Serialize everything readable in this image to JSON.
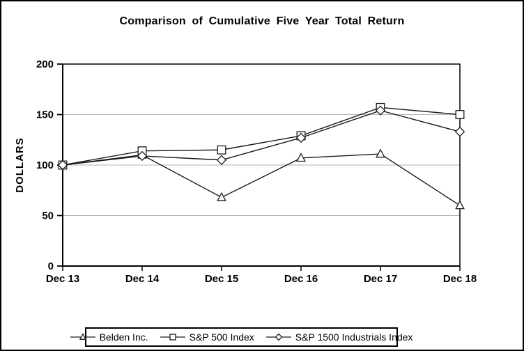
{
  "chart_data": {
    "type": "line",
    "title": "Comparison of Cumulative Five Year Total Return",
    "ylabel": "DOLLARS",
    "xlabel": "",
    "categories": [
      "Dec 13",
      "Dec 14",
      "Dec 15",
      "Dec 16",
      "Dec 17",
      "Dec 18"
    ],
    "series": [
      {
        "name": "Belden Inc.",
        "marker": "triangle",
        "values": [
          100,
          110,
          68,
          107,
          111,
          60
        ]
      },
      {
        "name": "S&P 500 Index",
        "marker": "square",
        "values": [
          100,
          114,
          115,
          129,
          157,
          150
        ]
      },
      {
        "name": "S&P 1500 Industrials Index",
        "marker": "diamond",
        "values": [
          100,
          109,
          105,
          127,
          154,
          133
        ]
      }
    ],
    "ylim": [
      0,
      200
    ],
    "y_ticks": [
      0,
      50,
      100,
      150,
      200
    ],
    "grid": "horizontal",
    "legend_position": "bottom",
    "colors": {
      "series_stroke": "#1a1a1a",
      "marker_fill": "#ffffff",
      "gridline": "#b3b3b3",
      "axis": "#000000",
      "background": "#ffffff",
      "border": "#000000"
    }
  }
}
